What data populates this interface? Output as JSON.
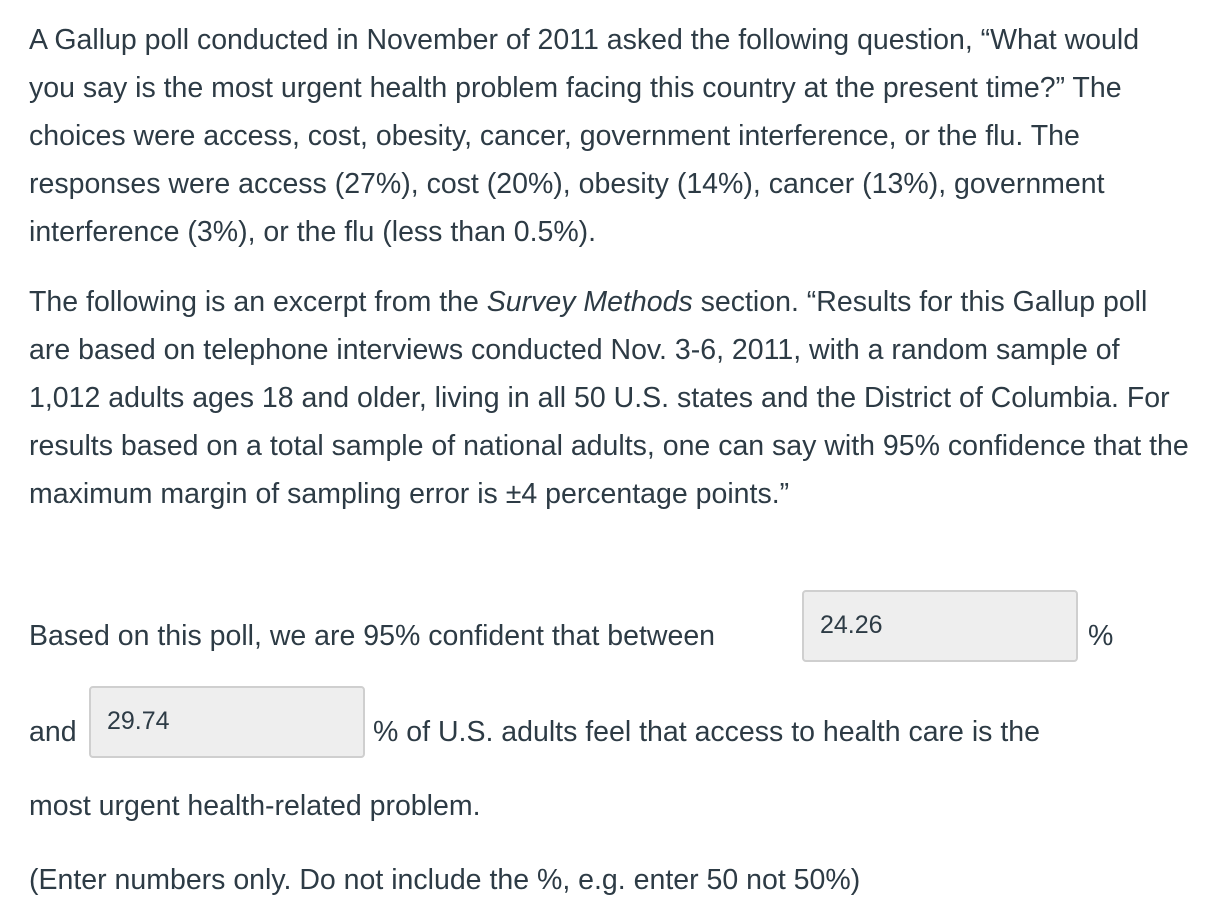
{
  "question": {
    "paragraph1": "A Gallup poll conducted in November of 2011 asked the following question, “What would you say is the most urgent health problem facing this country at the present time?” The choices were access, cost, obesity, cancer, government interference, or the flu. The responses were access (27%), cost (20%), obesity (14%), cancer (13%), government interference (3%), or the flu (less than 0.5%).",
    "paragraph2_before": "The following is an excerpt from the ",
    "paragraph2_emphasis": "Survey Methods",
    "paragraph2_after": " section. “Results for this Gallup poll are based on telephone interviews conducted Nov. 3-6, 2011, with a random sample of 1,012 adults ages 18 and older, living in all 50 U.S. states and the District of Columbia. For results based on a total sample of national adults, one can say with 95% confidence that the maximum margin of sampling error is ±4 percentage points.”"
  },
  "answer": {
    "lead_text": "Based on this poll, we are 95% confident that between",
    "lower_value": "24.26",
    "percent_sign": "%",
    "and_text": "and",
    "upper_value": "29.74",
    "tail_text": "% of U.S. adults feel that access to health care is the",
    "continuation": "most urgent health-related problem.",
    "instruction": "(Enter numbers only. Do not include the %, e.g. enter 50 not 50%)"
  }
}
